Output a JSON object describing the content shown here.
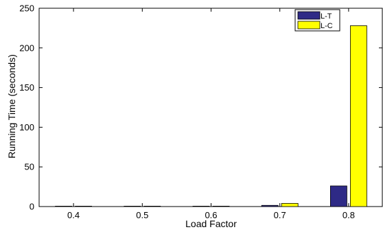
{
  "chart_data": {
    "type": "bar",
    "xlabel": "Load Factor",
    "ylabel": "Running Time (seconds)",
    "categories": [
      "0.4",
      "0.5",
      "0.6",
      "0.7",
      "0.8"
    ],
    "ylim": [
      0,
      250
    ],
    "yticks": [
      0,
      50,
      100,
      150,
      200,
      250
    ],
    "grid": false,
    "legend_position": "top-right",
    "series": [
      {
        "name": "L-T",
        "color": "#2e2a86",
        "values": [
          0.3,
          0.3,
          0.4,
          1.5,
          26
        ]
      },
      {
        "name": "L-C",
        "color": "#ffff00",
        "values": [
          0.1,
          0.1,
          0.1,
          4,
          228
        ]
      }
    ]
  }
}
